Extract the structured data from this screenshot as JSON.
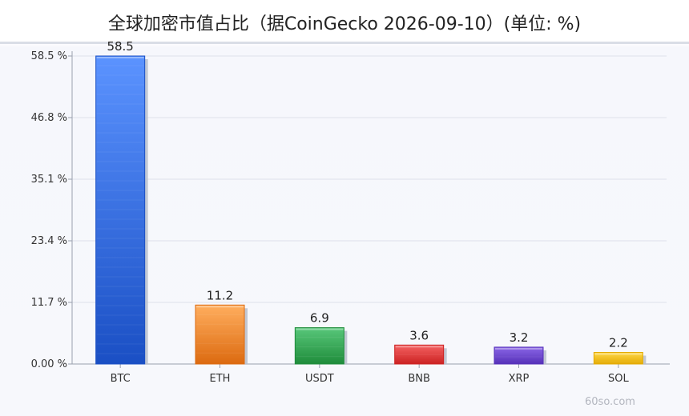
{
  "title": "全球加密市值占比（据CoinGecko 2026-09-10）(单位: %)",
  "watermark": "60so.com",
  "chart_data": {
    "type": "bar",
    "title": "全球加密市值占比（据CoinGecko 2026-09-10）(单位: %)",
    "xlabel": "",
    "ylabel": "",
    "categories": [
      "BTC",
      "ETH",
      "USDT",
      "BNB",
      "XRP",
      "SOL"
    ],
    "values": [
      58.5,
      11.2,
      6.9,
      3.6,
      3.2,
      2.2
    ],
    "value_labels": [
      "58.5",
      "11.2",
      "6.9",
      "3.6",
      "3.2",
      "2.2"
    ],
    "ylim": [
      0,
      58.5
    ],
    "y_ticks": [
      0,
      11.7,
      23.4,
      35.1,
      46.8,
      58.5
    ],
    "y_tick_labels": [
      "0.00 %",
      "11.7 %",
      "23.4 %",
      "35.1 %",
      "46.8 %",
      "58.5 %"
    ],
    "grid": true,
    "legend": "none",
    "colors": {
      "BTC": [
        "#5b93ff",
        "#1a4fc4"
      ],
      "ETH": [
        "#ffae5e",
        "#dc6a10"
      ],
      "USDT": [
        "#58c77a",
        "#1f8c3b"
      ],
      "BNB": [
        "#f46262",
        "#cc2222"
      ],
      "XRP": [
        "#8a66e6",
        "#5530b8"
      ],
      "SOL": [
        "#ffd84a",
        "#e3aa00"
      ]
    },
    "grid_color": "#dde0ea",
    "axis_color": "#9aa0ae"
  }
}
